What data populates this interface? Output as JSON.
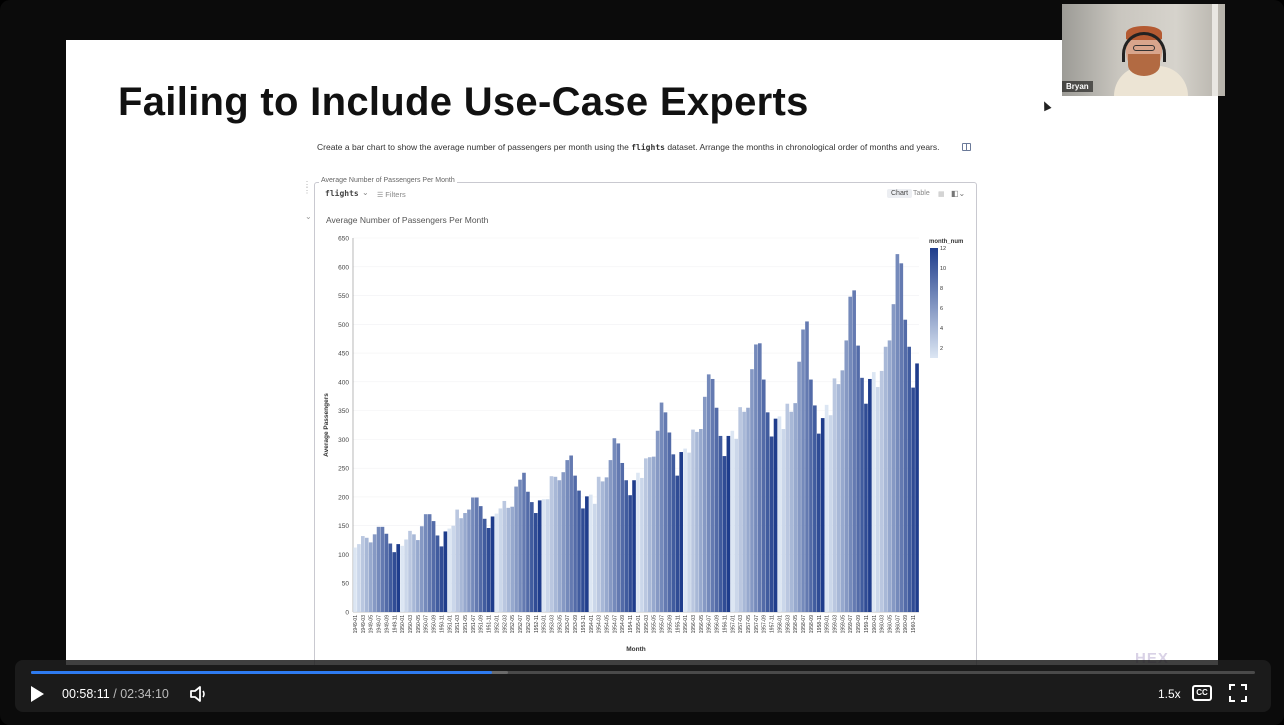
{
  "slide": {
    "title": "Failing to Include Use-Case Experts",
    "prompt_before": "Create a bar chart to show the average number of passengers per month using the",
    "prompt_code": "flights",
    "prompt_after": "dataset. Arrange the months in chronological order of months and years.",
    "watermark": "HEX"
  },
  "cell": {
    "label": "Average Number of Passengers Per Month",
    "dataframe": "flights",
    "filters_label": "Filters",
    "tabs": [
      "Chart",
      "Table"
    ],
    "active_tab": "Chart"
  },
  "chart_data": {
    "type": "bar",
    "title": "Average Number of Passengers Per Month",
    "xlabel": "Month",
    "ylabel": "Average Passengers",
    "ylim": [
      0,
      650
    ],
    "yticks": [
      0,
      50,
      100,
      150,
      200,
      250,
      300,
      350,
      400,
      450,
      500,
      550,
      600,
      650
    ],
    "color_legend_title": "month_num",
    "color_legend_ticks": [
      2,
      4,
      6,
      8,
      10,
      12
    ],
    "color_range": [
      "#dce6f3",
      "#1f3d8c"
    ],
    "x": [
      "1949-01",
      "1949-02",
      "1949-03",
      "1949-04",
      "1949-05",
      "1949-06",
      "1949-07",
      "1949-08",
      "1949-09",
      "1949-10",
      "1949-11",
      "1949-12",
      "1950-01",
      "1950-02",
      "1950-03",
      "1950-04",
      "1950-05",
      "1950-06",
      "1950-07",
      "1950-08",
      "1950-09",
      "1950-10",
      "1950-11",
      "1950-12",
      "1951-01",
      "1951-02",
      "1951-03",
      "1951-04",
      "1951-05",
      "1951-06",
      "1951-07",
      "1951-08",
      "1951-09",
      "1951-10",
      "1951-11",
      "1951-12",
      "1952-01",
      "1952-02",
      "1952-03",
      "1952-04",
      "1952-05",
      "1952-06",
      "1952-07",
      "1952-08",
      "1952-09",
      "1952-10",
      "1952-11",
      "1952-12",
      "1953-01",
      "1953-02",
      "1953-03",
      "1953-04",
      "1953-05",
      "1953-06",
      "1953-07",
      "1953-08",
      "1953-09",
      "1953-10",
      "1953-11",
      "1953-12",
      "1954-01",
      "1954-02",
      "1954-03",
      "1954-04",
      "1954-05",
      "1954-06",
      "1954-07",
      "1954-08",
      "1954-09",
      "1954-10",
      "1954-11",
      "1954-12",
      "1955-01",
      "1955-02",
      "1955-03",
      "1955-04",
      "1955-05",
      "1955-06",
      "1955-07",
      "1955-08",
      "1955-09",
      "1955-10",
      "1955-11",
      "1955-12",
      "1956-01",
      "1956-02",
      "1956-03",
      "1956-04",
      "1956-05",
      "1956-06",
      "1956-07",
      "1956-08",
      "1956-09",
      "1956-10",
      "1956-11",
      "1956-12",
      "1957-01",
      "1957-02",
      "1957-03",
      "1957-04",
      "1957-05",
      "1957-06",
      "1957-07",
      "1957-08",
      "1957-09",
      "1957-10",
      "1957-11",
      "1957-12",
      "1958-01",
      "1958-02",
      "1958-03",
      "1958-04",
      "1958-05",
      "1958-06",
      "1958-07",
      "1958-08",
      "1958-09",
      "1958-10",
      "1958-11",
      "1958-12",
      "1959-01",
      "1959-02",
      "1959-03",
      "1959-04",
      "1959-05",
      "1959-06",
      "1959-07",
      "1959-08",
      "1959-09",
      "1959-10",
      "1959-11",
      "1959-12",
      "1960-01",
      "1960-02",
      "1960-03",
      "1960-04",
      "1960-05",
      "1960-06",
      "1960-07",
      "1960-08",
      "1960-09",
      "1960-10",
      "1960-11",
      "1960-12"
    ],
    "values": [
      112,
      118,
      132,
      129,
      121,
      135,
      148,
      148,
      136,
      119,
      104,
      118,
      115,
      126,
      141,
      135,
      125,
      149,
      170,
      170,
      158,
      133,
      114,
      140,
      145,
      150,
      178,
      163,
      172,
      178,
      199,
      199,
      184,
      162,
      146,
      166,
      171,
      180,
      193,
      181,
      183,
      218,
      230,
      242,
      209,
      191,
      172,
      194,
      196,
      196,
      236,
      235,
      229,
      243,
      264,
      272,
      237,
      211,
      180,
      201,
      204,
      188,
      235,
      227,
      234,
      264,
      302,
      293,
      259,
      229,
      203,
      229,
      242,
      233,
      267,
      269,
      270,
      315,
      364,
      347,
      312,
      274,
      237,
      278,
      284,
      277,
      317,
      313,
      318,
      374,
      413,
      405,
      355,
      306,
      271,
      306,
      315,
      301,
      356,
      348,
      355,
      422,
      465,
      467,
      404,
      347,
      305,
      336,
      340,
      318,
      362,
      348,
      363,
      435,
      491,
      505,
      404,
      359,
      310,
      337,
      360,
      342,
      406,
      396,
      420,
      472,
      548,
      559,
      463,
      407,
      362,
      405,
      417,
      391,
      419,
      461,
      472,
      535,
      622,
      606,
      508,
      461,
      390,
      432
    ]
  },
  "webcam": {
    "name": "Bryan"
  },
  "player": {
    "current_time": "00:58:11",
    "separator": "/",
    "duration": "02:34:10",
    "progress": 0.377,
    "buffered": 0.39,
    "speed": "1.5x",
    "cc_label": "CC"
  },
  "icons": {
    "play": "play-icon",
    "volume": "volume-icon",
    "captions": "cc-icon",
    "fullscreen": "fullscreen-icon",
    "filter": "filter-icon",
    "layout": "layout-icon"
  }
}
